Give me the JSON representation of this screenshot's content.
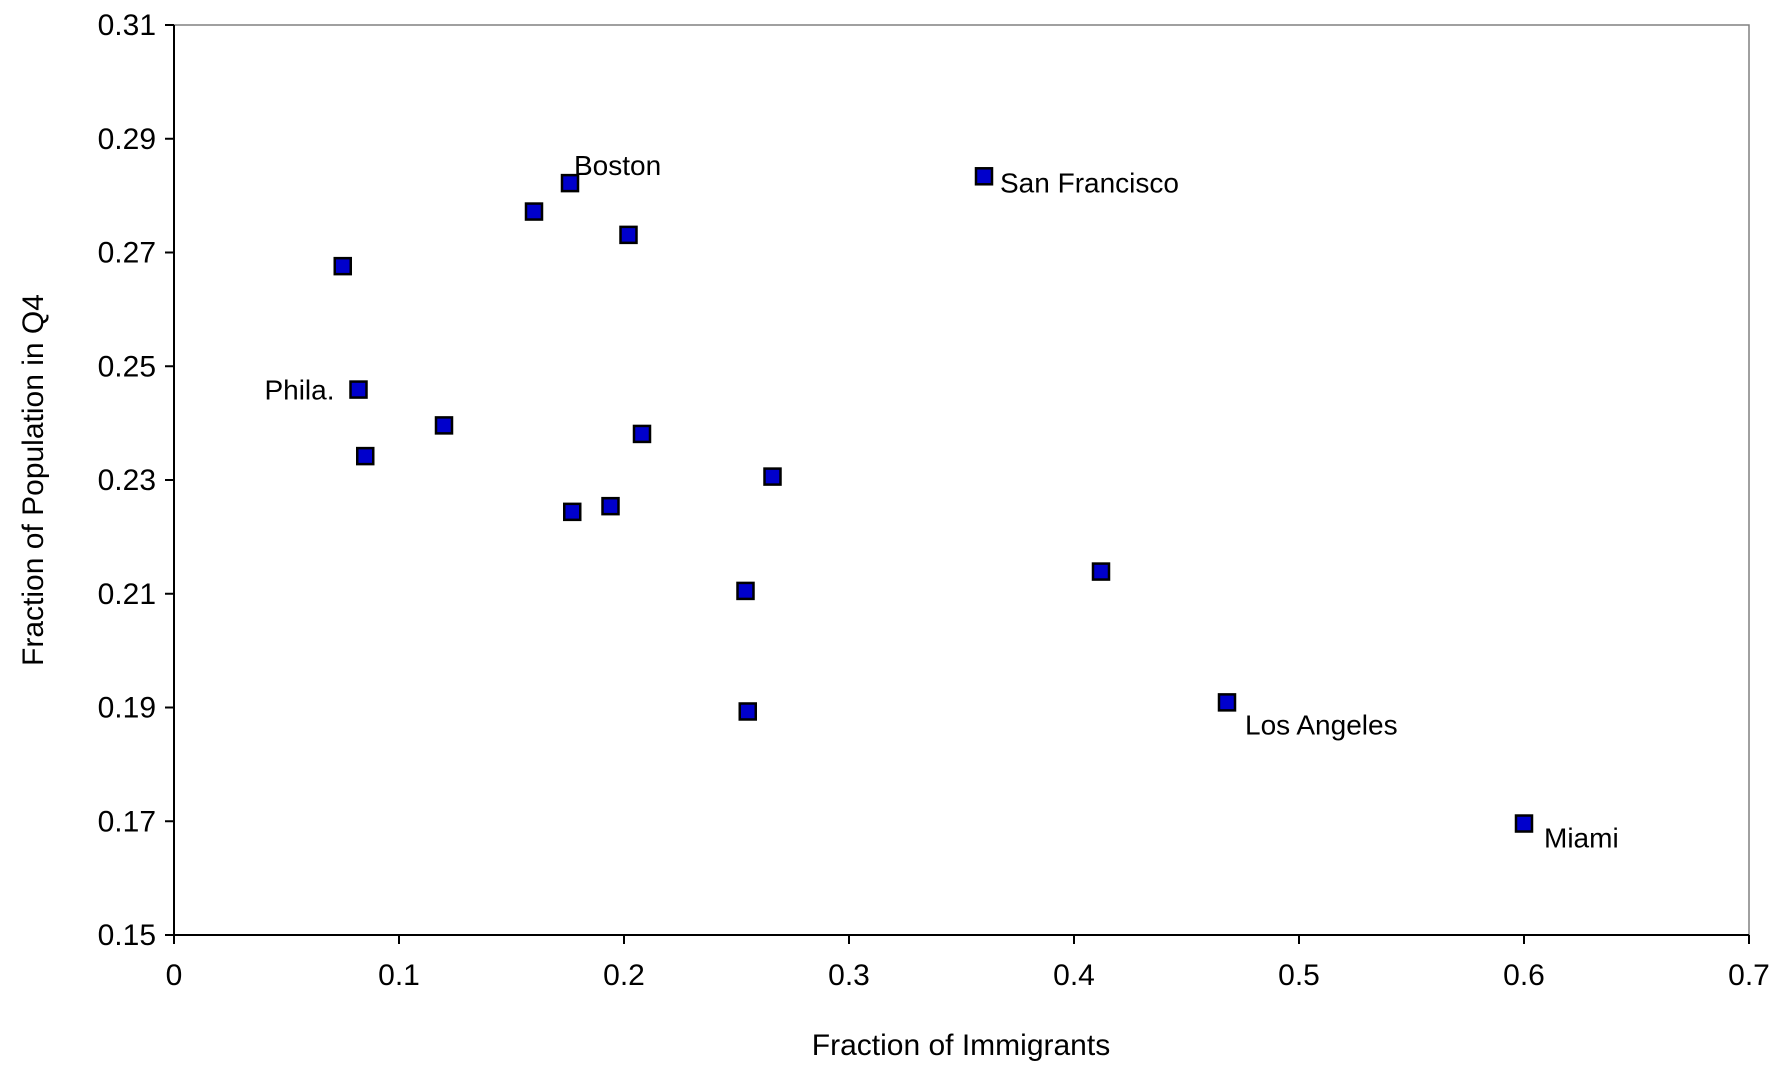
{
  "chart_data": {
    "type": "scatter",
    "title": "",
    "xlabel": "Fraction of Immigrants",
    "ylabel": "Fraction of Population in Q4",
    "xlim": [
      0,
      0.7
    ],
    "ylim": [
      0.15,
      0.31
    ],
    "x_ticks": [
      "0",
      "0.1",
      "0.2",
      "0.3",
      "0.4",
      "0.5",
      "0.6",
      "0.7"
    ],
    "y_ticks": [
      "0.15",
      "0.17",
      "0.19",
      "0.21",
      "0.23",
      "0.25",
      "0.27",
      "0.29",
      "0.31"
    ],
    "grid": false,
    "legend": "none",
    "marker": {
      "shape": "square",
      "fill": "#0000cc",
      "edge": "#000000"
    },
    "points": [
      {
        "x": 0.075,
        "y": 0.2676
      },
      {
        "x": 0.082,
        "y": 0.2459,
        "label": "Phila."
      },
      {
        "x": 0.085,
        "y": 0.2342
      },
      {
        "x": 0.12,
        "y": 0.2396
      },
      {
        "x": 0.16,
        "y": 0.2772
      },
      {
        "x": 0.176,
        "y": 0.2822,
        "label": "Boston"
      },
      {
        "x": 0.177,
        "y": 0.2244
      },
      {
        "x": 0.194,
        "y": 0.2254
      },
      {
        "x": 0.202,
        "y": 0.2731
      },
      {
        "x": 0.208,
        "y": 0.2381
      },
      {
        "x": 0.254,
        "y": 0.2105
      },
      {
        "x": 0.255,
        "y": 0.1893
      },
      {
        "x": 0.266,
        "y": 0.2306
      },
      {
        "x": 0.36,
        "y": 0.2834,
        "label": "San Francisco"
      },
      {
        "x": 0.412,
        "y": 0.2139
      },
      {
        "x": 0.468,
        "y": 0.1909,
        "label": "Los Angeles"
      },
      {
        "x": 0.6,
        "y": 0.1696,
        "label": "Miami"
      }
    ]
  }
}
